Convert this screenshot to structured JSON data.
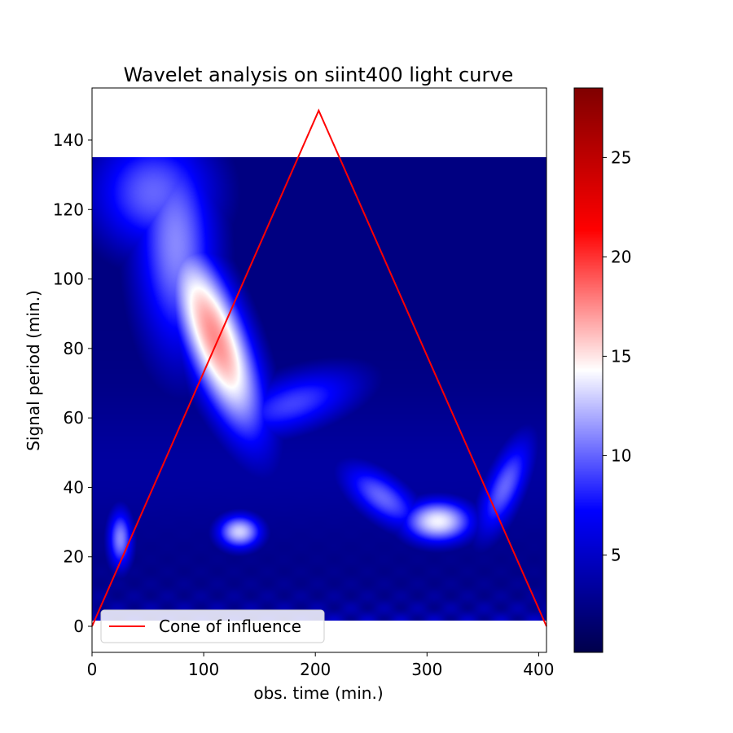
{
  "chart_data": {
    "type": "heatmap",
    "title": "Wavelet analysis on siint400 light curve",
    "xlabel": "obs. time (min.)",
    "ylabel": "Signal period (min.)",
    "xlim": [
      0,
      407
    ],
    "ylim": [
      -7.5,
      155
    ],
    "data_extent": {
      "x": [
        0,
        407
      ],
      "y": [
        1.5,
        135
      ]
    },
    "x_ticks": [
      0,
      100,
      200,
      300,
      400
    ],
    "y_ticks": [
      0,
      20,
      40,
      60,
      80,
      100,
      120,
      140
    ],
    "colorbar": {
      "colormap": "seismic",
      "range": [
        0.1,
        28.5
      ],
      "ticks": [
        5,
        10,
        15,
        20,
        25
      ]
    },
    "features": [
      {
        "x": 110,
        "y": 83,
        "value": 17.5,
        "sx": 38,
        "sy": 14,
        "rot": -30
      },
      {
        "x": 75,
        "y": 110,
        "value": 11,
        "sx": 30,
        "sy": 26,
        "rot": -20
      },
      {
        "x": 55,
        "y": 125,
        "value": 10,
        "sx": 45,
        "sy": 14,
        "rot": 0
      },
      {
        "x": 180,
        "y": 64,
        "value": 9,
        "sx": 50,
        "sy": 7,
        "rot": 5
      },
      {
        "x": 310,
        "y": 30,
        "value": 14,
        "sx": 25,
        "sy": 5,
        "rot": 0
      },
      {
        "x": 260,
        "y": 37,
        "value": 10,
        "sx": 30,
        "sy": 6,
        "rot": -10
      },
      {
        "x": 370,
        "y": 40,
        "value": 10,
        "sx": 22,
        "sy": 8,
        "rot": 25
      },
      {
        "x": 132,
        "y": 27,
        "value": 13,
        "sx": 16,
        "sy": 4,
        "rot": 0
      },
      {
        "x": 25,
        "y": 25,
        "value": 11,
        "sx": 9,
        "sy": 7,
        "rot": 0
      }
    ],
    "cone_of_influence": {
      "x": [
        0,
        203,
        407
      ],
      "y": [
        0,
        148.5,
        0
      ],
      "color": "#ff0000"
    },
    "legend": {
      "placement": "lower-left",
      "entries": [
        "Cone of influence"
      ]
    }
  }
}
